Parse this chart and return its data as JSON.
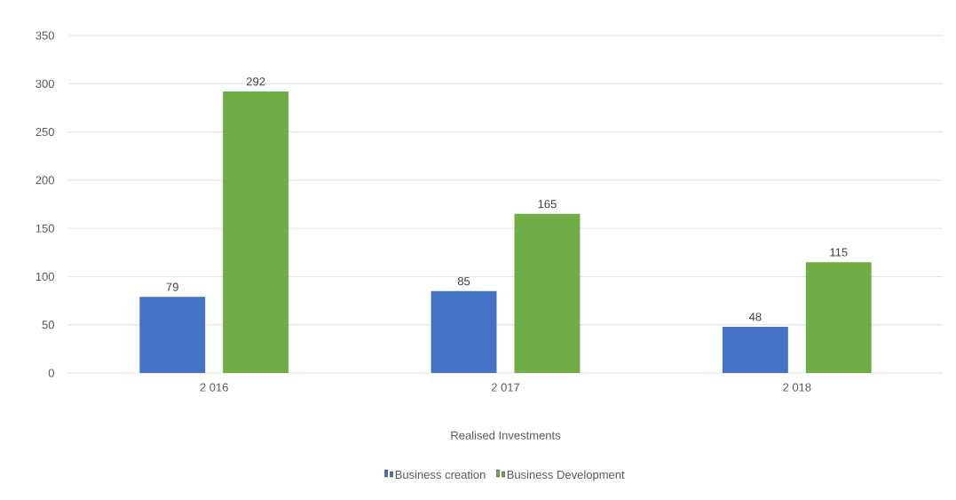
{
  "chart_data": {
    "type": "bar",
    "xlabel": "Realised Investments",
    "categories": [
      "2 016",
      "2 017",
      "2 018"
    ],
    "series": [
      {
        "name": "Business creation",
        "color": "#4472c4",
        "values": [
          79,
          85,
          48
        ]
      },
      {
        "name": "Business Development",
        "color": "#70ad47",
        "values": [
          292,
          165,
          115
        ]
      }
    ],
    "ylim": [
      0,
      350
    ],
    "yticks": [
      0,
      50,
      100,
      150,
      200,
      250,
      300,
      350
    ],
    "grid": "y",
    "legend": "bottom",
    "data_labels": true
  }
}
